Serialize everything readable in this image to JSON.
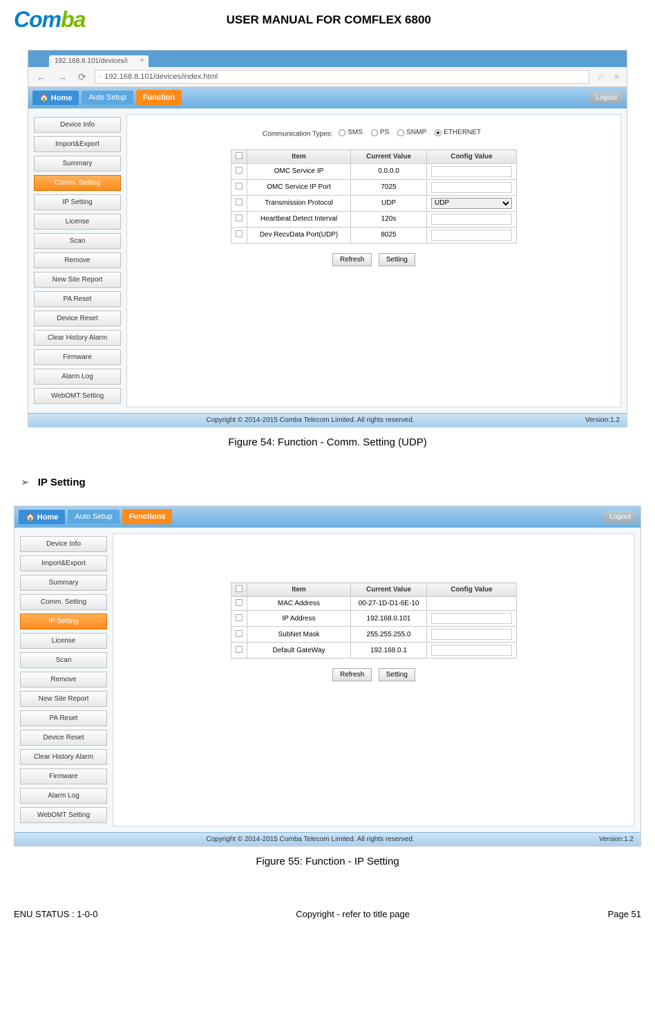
{
  "header": {
    "logo_part1": "Com",
    "logo_part2": "ba",
    "doc_title": "USER MANUAL FOR COMFLEX 6800"
  },
  "browser": {
    "tab_title": "192.168.8.101/devices/i",
    "url": "192.168.8.101/devices/index.html"
  },
  "nav": {
    "home": "Home",
    "auto": "Auto Setup",
    "func1": "Function",
    "func2": "Functions",
    "logout": "Logout"
  },
  "sidebar_items": [
    "Device Info",
    "Import&Export",
    "Summary",
    "Comm. Setting",
    "IP Setting",
    "License",
    "Scan",
    "Remove",
    "New Site Report",
    "PA Reset",
    "Device Reset",
    "Clear History Alarm",
    "Firmware",
    "Alarm Log",
    "WebOMT Setting"
  ],
  "comm": {
    "label": "Communication Types:",
    "opts": [
      "SMS",
      "PS",
      "SNMP",
      "ETHERNET"
    ],
    "selected": "ETHERNET",
    "headers": [
      "",
      "Item",
      "Current Value",
      "Config Value"
    ],
    "rows": [
      {
        "item": "OMC Service IP",
        "cur": "0.0.0.0",
        "type": "input"
      },
      {
        "item": "OMC Service IP Port",
        "cur": "7025",
        "type": "input"
      },
      {
        "item": "Transmission Protocol",
        "cur": "UDP",
        "type": "select",
        "val": "UDP"
      },
      {
        "item": "Heartbeat Detect Interval",
        "cur": "120s",
        "type": "input"
      },
      {
        "item": "Dev RecvData Port(UDP)",
        "cur": "8025",
        "type": "input"
      }
    ]
  },
  "ip": {
    "headers": [
      "",
      "Item",
      "Current Value",
      "Config Value"
    ],
    "rows": [
      {
        "item": "MAC Address",
        "cur": "00-27-1D-D1-6E-10",
        "type": "none"
      },
      {
        "item": "IP Address",
        "cur": "192.168.0.101",
        "type": "input"
      },
      {
        "item": "SubNet Mask",
        "cur": "255.255.255.0",
        "type": "input"
      },
      {
        "item": "Default GateWay",
        "cur": "192.168.0.1",
        "type": "input"
      }
    ]
  },
  "buttons": {
    "refresh": "Refresh",
    "setting": "Setting"
  },
  "app_footer": {
    "copyright": "Copyright © 2014-2015 Comba Telecom Limited. All rights reserved.",
    "version": "Version:1.2"
  },
  "captions": {
    "fig54": "Figure 54: Function - Comm. Setting (UDP)",
    "fig55": "Figure 55: Function - IP Setting"
  },
  "section": {
    "arrow": "➢",
    "ip_setting": "IP Setting"
  },
  "page_footer": {
    "left": "ENU STATUS : 1-0-0",
    "mid": "Copyright - refer to title page",
    "right": "Page 51"
  }
}
